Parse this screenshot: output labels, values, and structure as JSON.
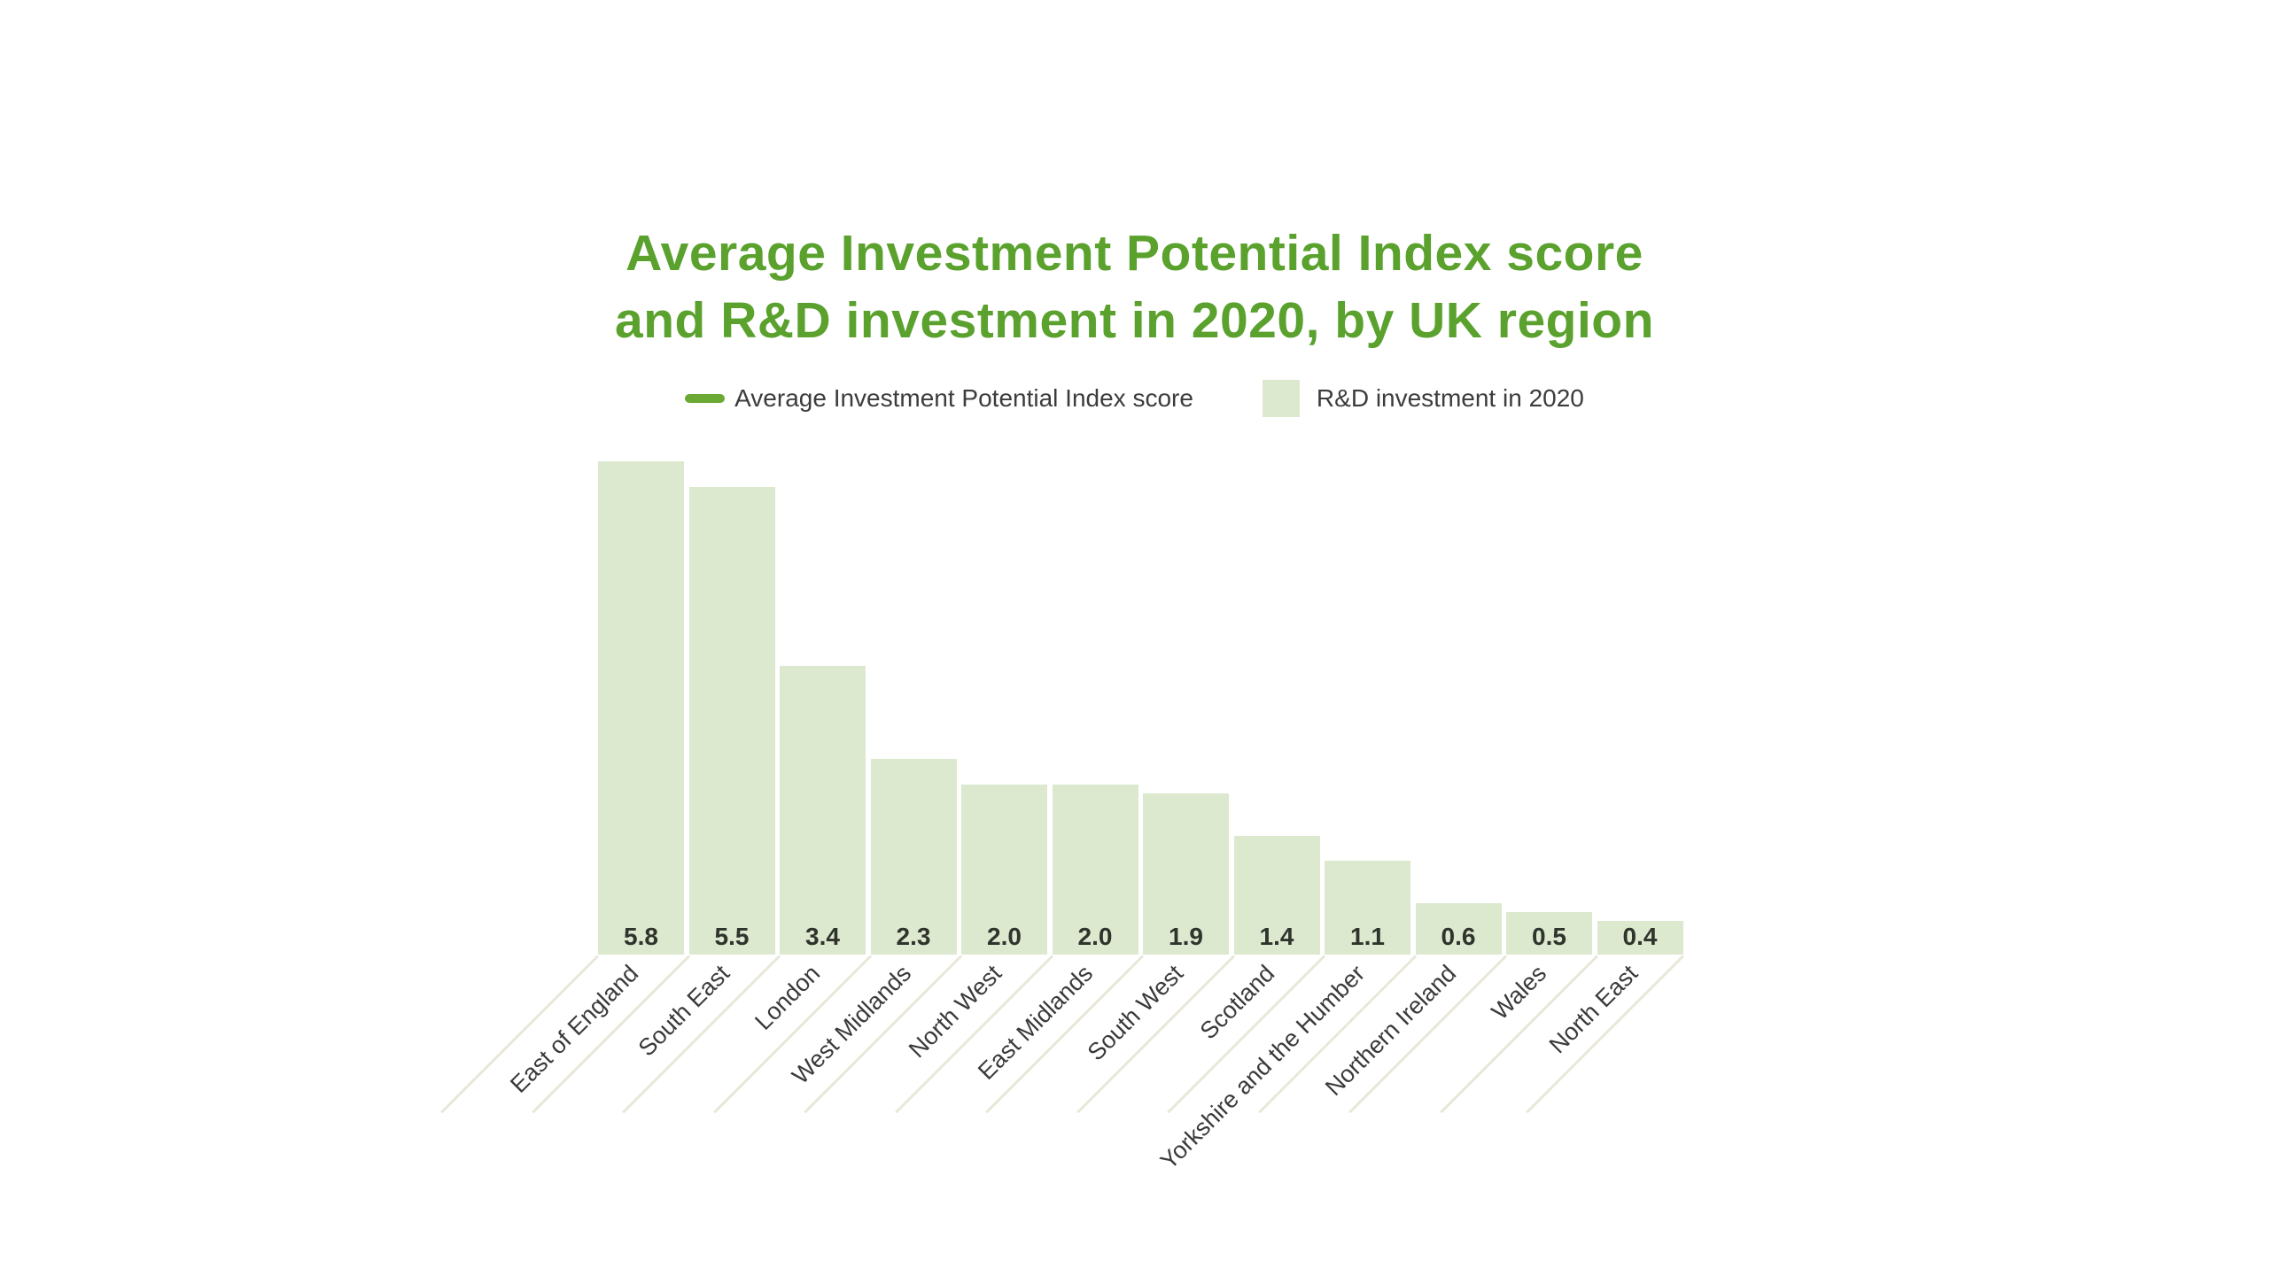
{
  "title": {
    "line1": "Average Investment Potential Index score",
    "line2": "and R&D investment in 2020, by UK region"
  },
  "legend": {
    "items": [
      {
        "label": "Average Investment Potential Index score",
        "swatch": "dash-icon",
        "color": "#6aa933"
      },
      {
        "label": "R&D investment in 2020",
        "swatch": "square-icon",
        "color": "#dce9cf"
      }
    ]
  },
  "chart_data": {
    "type": "bar",
    "title": "Average Investment Potential Index score and R&D investment in 2020, by UK region",
    "categories": [
      "East of England",
      "South East",
      "London",
      "West Midlands",
      "North West",
      "East Midlands",
      "South West",
      "Scotland",
      "Yorkshire and the Humber",
      "Northern Ireland",
      "Wales",
      "North East"
    ],
    "values": [
      5.8,
      5.5,
      3.4,
      2.3,
      2.0,
      2.0,
      1.9,
      1.4,
      1.1,
      0.6,
      0.5,
      0.4
    ],
    "value_labels": [
      "5.8",
      "5.5",
      "3.4",
      "2.3",
      "2.0",
      "2.0",
      "1.9",
      "1.4",
      "1.1",
      "0.6",
      "0.5",
      "0.4"
    ],
    "series": [
      {
        "name": "Average Investment Potential Index score",
        "type": "line",
        "drawn_in_plot": false
      },
      {
        "name": "R&D investment in 2020",
        "type": "bar"
      }
    ],
    "xlabel": "",
    "ylabel": "",
    "ylim": [
      0,
      6.2
    ],
    "grid": false,
    "y_axis_visible": false,
    "value_label_position": "inside-base",
    "x_tick_rotation": -45,
    "legend_position": "top"
  },
  "colors": {
    "title_green": "#5aa12d",
    "bar_fill": "#dce9cf",
    "legend_dash_green": "#6aa933",
    "value_label_text": "#2f342c",
    "axis_label_text": "#3a3a3a",
    "leader_line": "#e9e7d8",
    "background": "#ffffff"
  }
}
